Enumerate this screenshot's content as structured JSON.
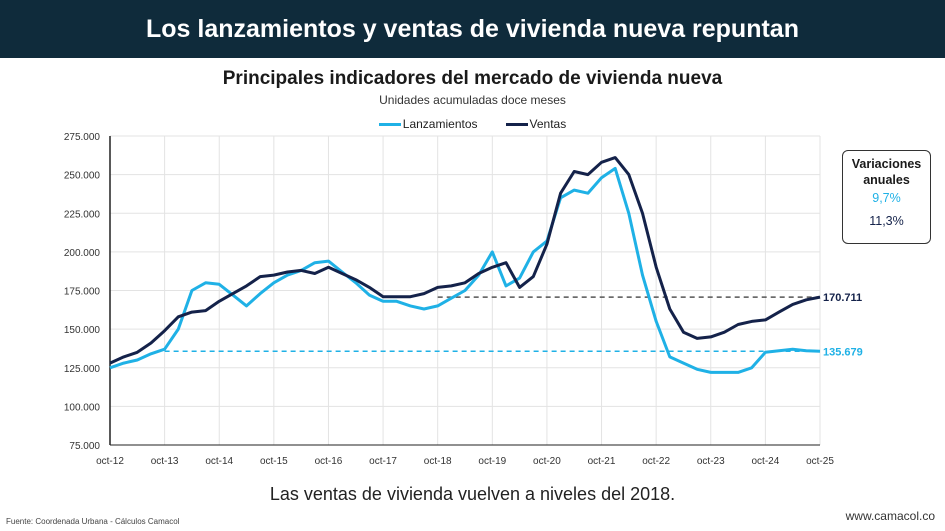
{
  "header": {
    "title": "Los lanzamientos y ventas de vivienda nueva repuntan"
  },
  "colors": {
    "header_bg": "#0f2b3b",
    "lanzamientos": "#1fb1e6",
    "ventas": "#14224a"
  },
  "variaciones": {
    "title": "Variaciones anuales",
    "lanzamientos": "9,7%",
    "ventas": "11,3%"
  },
  "caption": "Las ventas de vivienda vuelven a niveles del 2018.",
  "source": "Fuente: Coordenada Urbana - Cálculos Camacol",
  "website": "www.camacol.co",
  "chart_data": {
    "type": "line",
    "title": "Principales indicadores del mercado de vivienda nueva",
    "subtitle": "Unidades acumuladas doce meses",
    "legend_position": "top",
    "grid": true,
    "ylim": [
      75000,
      275000
    ],
    "y_ticks": [
      "75.000",
      "100.000",
      "125.000",
      "150.000",
      "175.000",
      "200.000",
      "225.000",
      "250.000",
      "275.000"
    ],
    "x_ticks": [
      "oct-12",
      "oct-13",
      "oct-14",
      "oct-15",
      "oct-16",
      "oct-17",
      "oct-18",
      "oct-19",
      "oct-20",
      "oct-21",
      "oct-22",
      "oct-23",
      "oct-24",
      "oct-25"
    ],
    "x": [
      "oct-12",
      "ene-13",
      "abr-13",
      "jul-13",
      "oct-13",
      "ene-14",
      "abr-14",
      "jul-14",
      "oct-14",
      "ene-15",
      "abr-15",
      "jul-15",
      "oct-15",
      "ene-16",
      "abr-16",
      "jul-16",
      "oct-16",
      "ene-17",
      "abr-17",
      "jul-17",
      "oct-17",
      "ene-18",
      "abr-18",
      "jul-18",
      "oct-18",
      "ene-19",
      "abr-19",
      "jul-19",
      "oct-19",
      "ene-20",
      "abr-20",
      "jul-20",
      "oct-20",
      "ene-21",
      "abr-21",
      "jul-21",
      "oct-21",
      "ene-22",
      "abr-22",
      "jul-22",
      "oct-22",
      "ene-23",
      "abr-23",
      "jul-23",
      "oct-23",
      "ene-24",
      "abr-24",
      "jul-24",
      "oct-24",
      "ene-25",
      "abr-25",
      "jul-25",
      "oct-25"
    ],
    "series": [
      {
        "name": "Lanzamientos",
        "color": "#1fb1e6",
        "values": [
          125000,
          128000,
          130000,
          134000,
          137000,
          150000,
          175000,
          180000,
          179000,
          172000,
          165000,
          173000,
          180000,
          185000,
          188000,
          193000,
          194000,
          187000,
          180000,
          172000,
          168000,
          168000,
          165000,
          163000,
          165000,
          170000,
          175000,
          185000,
          200000,
          178000,
          183000,
          200000,
          207000,
          235000,
          240000,
          238000,
          248000,
          254000,
          225000,
          185000,
          155000,
          132000,
          128000,
          124000,
          122000,
          122000,
          122000,
          125000,
          135000,
          136000,
          137000,
          136000,
          135679
        ],
        "end_label": "135.679",
        "reference_line": 135679
      },
      {
        "name": "Ventas",
        "color": "#14224a",
        "values": [
          128000,
          132000,
          135000,
          141000,
          149000,
          158000,
          161000,
          162000,
          168000,
          173000,
          178000,
          184000,
          185000,
          187000,
          188000,
          186000,
          190000,
          186000,
          182000,
          177000,
          171000,
          171000,
          171000,
          173000,
          177000,
          178000,
          180000,
          186000,
          190000,
          193000,
          177000,
          184000,
          205000,
          238000,
          252000,
          250000,
          258000,
          261000,
          250000,
          225000,
          190000,
          163000,
          148000,
          144000,
          145000,
          148000,
          153000,
          155000,
          156000,
          161000,
          166000,
          169000,
          170711
        ],
        "end_label": "170.711",
        "reference_line": 170711
      }
    ]
  }
}
